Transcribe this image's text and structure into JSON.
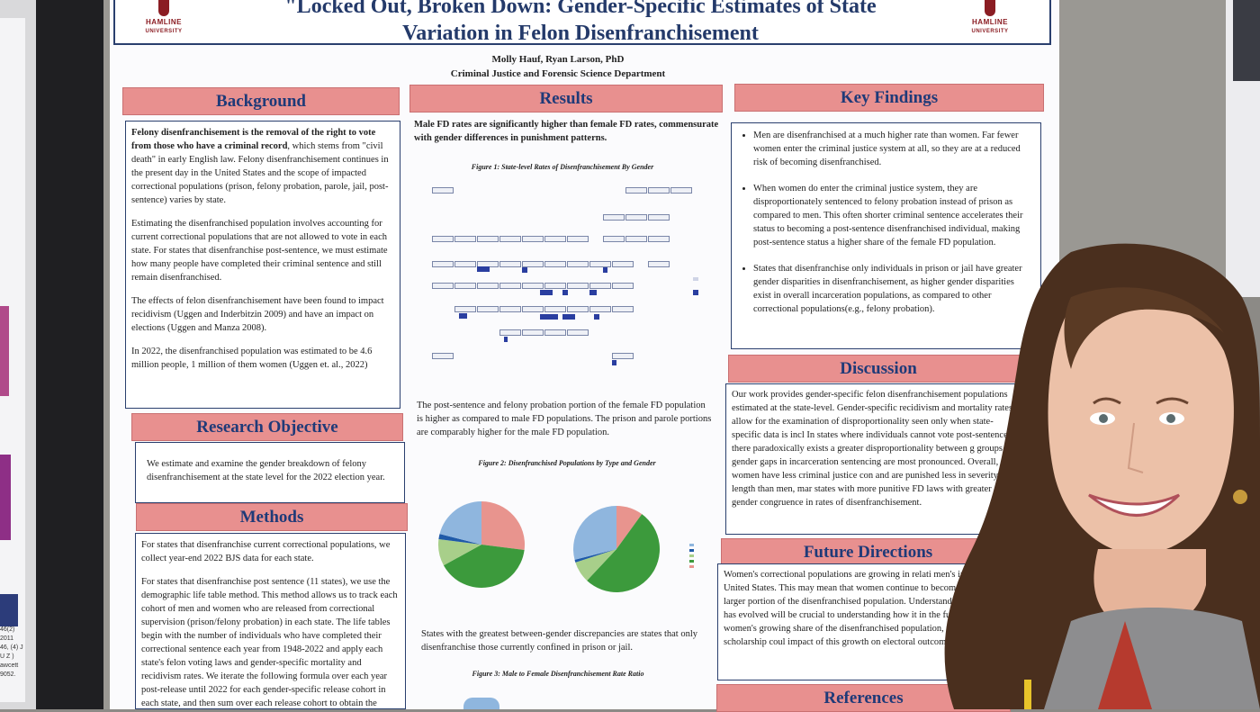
{
  "title": {
    "line1": "\"Locked Out, Broken Down: Gender-Specific Estimates of State",
    "line2": "Variation in Felon Disenfranchisement"
  },
  "logos": {
    "left": "HAMLINE",
    "left_sub": "UNIVERSITY",
    "right": "HAMLINE",
    "right_sub": "UNIVERSITY"
  },
  "authors": {
    "names": "Molly Hauf, Ryan Larson, PhD",
    "dept": "Criminal Justice and Forensic Science Department"
  },
  "background": {
    "heading": "Background",
    "p1_bold": "Felony disenfranchisement is the removal of the right to vote from those who have a criminal record",
    "p1_rest": ", which stems from \"civil death\" in early English law. Felony disenfranchisement continues in the present day in the United States and the scope of impacted correctional populations (prison, felony probation, parole, jail, post-sentence) varies by state.",
    "p2": "Estimating the disenfranchised population involves accounting for current correctional populations that are not allowed to vote in each state. For states that disenfranchise post-sentence, we must estimate how many people have completed their criminal sentence and still remain disenfranchised.",
    "p3": "The effects of felon disenfranchisement have been found to impact recidivism (Uggen and Inderbitzin 2009) and have an impact on elections (Uggen and Manza 2008).",
    "p4": "In 2022, the disenfranchised population was estimated to be 4.6 million people, 1 million of them women (Uggen et. al., 2022)"
  },
  "objective": {
    "heading": "Research Objective",
    "text": "We estimate and examine the gender breakdown of felony disenfranchisement at the state level for the 2022 election year."
  },
  "methods": {
    "heading": "Methods",
    "p1": "For states that disenfranchise current correctional populations, we collect year-end 2022 BJS data for each state.",
    "p2": "For states that disenfranchise post sentence (11 states), we use the demographic life table method. This method allows us to track each cohort of men and women who are released from correctional supervision (prison/felony probation) in each state. The life tables begin with the number of individuals who have completed their correctional sentence each year from 1948-2022 and apply each state's felon voting laws and gender-specific mortality and recidivism rates. We iterate the following formula over each year post-release until 2022 for each gender-specific release cohort in each state, and then sum over each release cohort to obtain the number of individuals disenfranchised post-sentence:"
  },
  "results": {
    "heading": "Results",
    "lead": "Male FD rates are significantly higher than female FD rates, commensurate with gender differences in punishment patterns.",
    "fig1": "Figure 1: State-level Rates of Disenfranchisement By Gender",
    "para2": "The post-sentence and felony probation portion of the female FD population is higher as compared to male FD populations. The prison and parole portions are comparably higher for the male FD population.",
    "fig2": "Figure 2: Disenfranchised Populations by Type and Gender",
    "para3": "States with the greatest between-gender discrepancies are states that only disenfranchise those currently confined in prison or jail.",
    "fig3": "Figure 3: Male to Female Disenfranchisement Rate Ratio"
  },
  "key_findings": {
    "heading": "Key Findings",
    "items": [
      "Men are disenfranchised at a much higher rate than women. Far fewer women enter the criminal justice system at all, so they are at a reduced risk of becoming disenfranchised.",
      "When women do enter the criminal justice system, they are disproportionately sentenced to felony probation instead of prison as compared to men. This often shorter criminal sentence accelerates their status to becoming a post-sentence disenfranchised individual, making post-sentence status a higher share of the female FD population.",
      "States that disenfranchise only individuals in prison or jail have greater gender disparities in disenfranchisement, as higher gender disparities exist in overall incarceration populations, as compared to other correctional populations(e.g., felony probation)."
    ]
  },
  "discussion": {
    "heading": "Discussion",
    "text": "Our work provides gender-specific felon disenfranchisement populations estimated at the state-level. Gender-specific recidivism and mortality rates allow for the examination of disproportionality seen only when state-specific data is incl In states where individuals cannot vote post-sentence, there paradoxically exists a greater disproportionality between g groups as gender gaps in incarceration sentencing are most pronounced. Overall, women have less criminal justice con and are punished less in severity and length than men, mar states with more punitive FD laws with greater gender congruence in rates of disenfranchisement."
  },
  "future": {
    "heading": "Future Directions",
    "text": "Women's correctional populations are growing in relati men's in the United States. This may mean that women continue to become an overall larger portion of the disenfranchised population. Understanding how this has evolved will be crucial to understanding how it in the future. Given women's growing share of the disenfranchised population, future scholarship coul impact of this growth on electoral outcomes."
  },
  "references": {
    "heading": "References"
  },
  "pie_left": {
    "slices": [
      {
        "value": 0.27,
        "color": "#e8948e"
      },
      {
        "value": 0.4,
        "color": "#3c9a3c"
      },
      {
        "value": 0.1,
        "color": "#a8cf8a"
      },
      {
        "value": 0.02,
        "color": "#1f5aa8"
      },
      {
        "value": 0.21,
        "color": "#8fb6de"
      }
    ]
  },
  "pie_right": {
    "slices": [
      {
        "value": 0.1,
        "color": "#e8948e"
      },
      {
        "value": 0.52,
        "color": "#3c9a3c"
      },
      {
        "value": 0.08,
        "color": "#a8cf8a"
      },
      {
        "value": 0.01,
        "color": "#1f5aa8"
      },
      {
        "value": 0.29,
        "color": "#8fb6de"
      }
    ]
  },
  "left_neighbor_ref": "46(2) 2011 46, (4) J U Z ) awcett 9052."
}
